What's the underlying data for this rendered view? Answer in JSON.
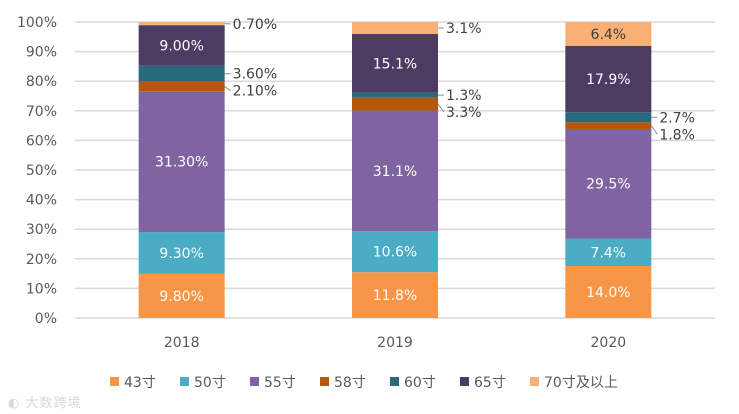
{
  "chart_data": {
    "type": "bar",
    "stacked": "percent",
    "title": "",
    "xlabel": "",
    "ylabel": "",
    "ylim": [
      0,
      100
    ],
    "yticks": [
      "0%",
      "10%",
      "20%",
      "30%",
      "40%",
      "50%",
      "60%",
      "70%",
      "80%",
      "90%",
      "100%"
    ],
    "grid": true,
    "legend_position": "bottom",
    "categories": [
      "2018",
      "2019",
      "2020"
    ],
    "series": [
      {
        "name": "43寸",
        "color": "#F79646",
        "label_color": "#ffffff",
        "values": [
          9.8,
          11.8,
          14.0
        ],
        "labels": [
          "9.80%",
          "11.8%",
          "14.0%"
        ]
      },
      {
        "name": "50寸",
        "color": "#4BACC6",
        "label_color": "#ffffff",
        "values": [
          9.3,
          10.6,
          7.4
        ],
        "labels": [
          "9.30%",
          "10.6%",
          "7.4%"
        ]
      },
      {
        "name": "55寸",
        "color": "#8064A2",
        "label_color": "#ffffff",
        "values": [
          31.3,
          31.1,
          29.5
        ],
        "labels": [
          "31.30%",
          "31.1%",
          "29.5%"
        ]
      },
      {
        "name": "58寸",
        "color": "#B65708",
        "label_color": "#404040",
        "values": [
          2.1,
          3.3,
          1.8
        ],
        "labels": [
          "2.10%",
          "3.3%",
          "1.8%"
        ]
      },
      {
        "name": "60寸",
        "color": "#276A7C",
        "label_color": "#404040",
        "values": [
          3.6,
          1.3,
          2.7
        ],
        "labels": [
          "3.60%",
          "1.3%",
          "2.7%"
        ]
      },
      {
        "name": "65寸",
        "color": "#4C3B62",
        "label_color": "#ffffff",
        "values": [
          9.0,
          15.1,
          17.9
        ],
        "labels": [
          "9.00%",
          "15.1%",
          "17.9%"
        ]
      },
      {
        "name": "70寸及以上",
        "color": "#F9B074",
        "label_color": "#404040",
        "values": [
          0.7,
          3.1,
          6.4
        ],
        "labels": [
          "0.70%",
          "3.1%",
          "6.4%"
        ]
      }
    ]
  },
  "watermark": "大数跨境"
}
